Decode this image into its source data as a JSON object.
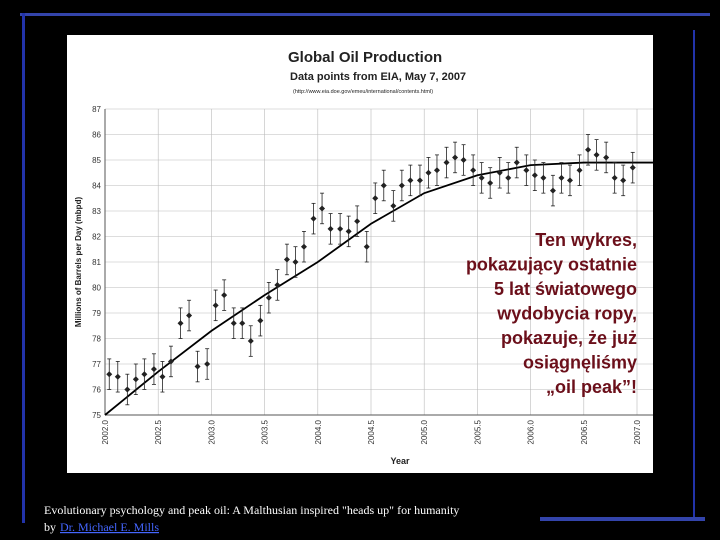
{
  "chart_data": {
    "type": "scatter",
    "title": "Global Oil Production",
    "subtitle": "Data points from EIA, May 7, 2007",
    "source": "(http://www.eia.doe.gov/emeu/international/contents.html)",
    "x_label": "Year",
    "y_label": "Millions of Barrels per Day (mbpd)",
    "x": [
      2002.04,
      2002.12,
      2002.21,
      2002.29,
      2002.37,
      2002.46,
      2002.54,
      2002.62,
      2002.71,
      2002.79,
      2002.87,
      2002.96,
      2003.04,
      2003.12,
      2003.21,
      2003.29,
      2003.37,
      2003.46,
      2003.54,
      2003.62,
      2003.71,
      2003.79,
      2003.87,
      2003.96,
      2004.04,
      2004.12,
      2004.21,
      2004.29,
      2004.37,
      2004.46,
      2004.54,
      2004.62,
      2004.71,
      2004.79,
      2004.87,
      2004.96,
      2005.04,
      2005.12,
      2005.21,
      2005.29,
      2005.37,
      2005.46,
      2005.54,
      2005.62,
      2005.71,
      2005.79,
      2005.87,
      2005.96,
      2006.04,
      2006.12,
      2006.21,
      2006.29,
      2006.37,
      2006.46,
      2006.54,
      2006.62,
      2006.71,
      2006.79,
      2006.87,
      2006.96
    ],
    "values": [
      76.6,
      76.5,
      76.0,
      76.4,
      76.6,
      76.8,
      76.5,
      77.1,
      78.6,
      78.9,
      76.9,
      77.0,
      79.3,
      79.7,
      78.6,
      78.6,
      77.9,
      78.7,
      79.6,
      80.1,
      81.1,
      81.0,
      81.6,
      82.7,
      83.1,
      82.3,
      82.3,
      82.2,
      82.6,
      81.6,
      83.5,
      84.0,
      83.2,
      84.0,
      84.2,
      84.2,
      84.5,
      84.6,
      84.9,
      85.1,
      85.0,
      84.6,
      84.3,
      84.1,
      84.5,
      84.3,
      84.9,
      84.6,
      84.4,
      84.3,
      83.8,
      84.3,
      84.2,
      84.6,
      85.4,
      85.2,
      85.1,
      84.3,
      84.2,
      84.7
    ],
    "errors": [
      0.6,
      0.6,
      0.6,
      0.6,
      0.6,
      0.6,
      0.6,
      0.6,
      0.6,
      0.6,
      0.6,
      0.6,
      0.6,
      0.6,
      0.6,
      0.6,
      0.6,
      0.6,
      0.6,
      0.6,
      0.6,
      0.6,
      0.6,
      0.6,
      0.6,
      0.6,
      0.6,
      0.6,
      0.6,
      0.6,
      0.6,
      0.6,
      0.6,
      0.6,
      0.6,
      0.6,
      0.6,
      0.6,
      0.6,
      0.6,
      0.6,
      0.6,
      0.6,
      0.6,
      0.6,
      0.6,
      0.6,
      0.6,
      0.6,
      0.6,
      0.6,
      0.6,
      0.6,
      0.6,
      0.6,
      0.6,
      0.6,
      0.6,
      0.6,
      0.6
    ],
    "color": "#222222",
    "trend": {
      "x": [
        2002.0,
        2002.5,
        2003.0,
        2003.5,
        2004.0,
        2004.5,
        2005.0,
        2005.5,
        2006.0,
        2006.5,
        2007.0,
        2007.2
      ],
      "values": [
        75.0,
        76.7,
        78.3,
        79.7,
        81.0,
        82.5,
        83.7,
        84.4,
        84.8,
        84.9,
        84.9,
        84.9
      ]
    },
    "xlim": [
      2002,
      2007.2
    ],
    "ylim": [
      75,
      87
    ],
    "xticks": [
      {
        "value": 2002,
        "label": "2002.0"
      },
      {
        "value": 2002.5,
        "label": "2002.5"
      },
      {
        "value": 2003,
        "label": "2003.0"
      },
      {
        "value": 2003.5,
        "label": "2003.5"
      },
      {
        "value": 2004,
        "label": "2004.0"
      },
      {
        "value": 2004.5,
        "label": "2004.5"
      },
      {
        "value": 2005,
        "label": "2005.0"
      },
      {
        "value": 2005.5,
        "label": "2005.5"
      },
      {
        "value": 2006,
        "label": "2006.0"
      },
      {
        "value": 2006.5,
        "label": "2006.5"
      },
      {
        "value": 2007,
        "label": "2007.0"
      }
    ],
    "yticks": [
      75,
      76,
      77,
      78,
      79,
      80,
      81,
      82,
      83,
      84,
      85,
      86,
      87
    ],
    "grid": true
  },
  "overlay_text": [
    "Ten wykres,",
    "pokazujący ostatnie",
    "5 lat światowego",
    "wydobycia ropy,",
    "pokazuje, że już",
    "osiągnęliśmy",
    "„oil peak”!"
  ],
  "footer": {
    "line": "Evolutionary psychology and peak oil: A Malthusian inspired \"heads up\" for humanity",
    "by": "by",
    "author": "Dr. Michael E. Mills"
  }
}
